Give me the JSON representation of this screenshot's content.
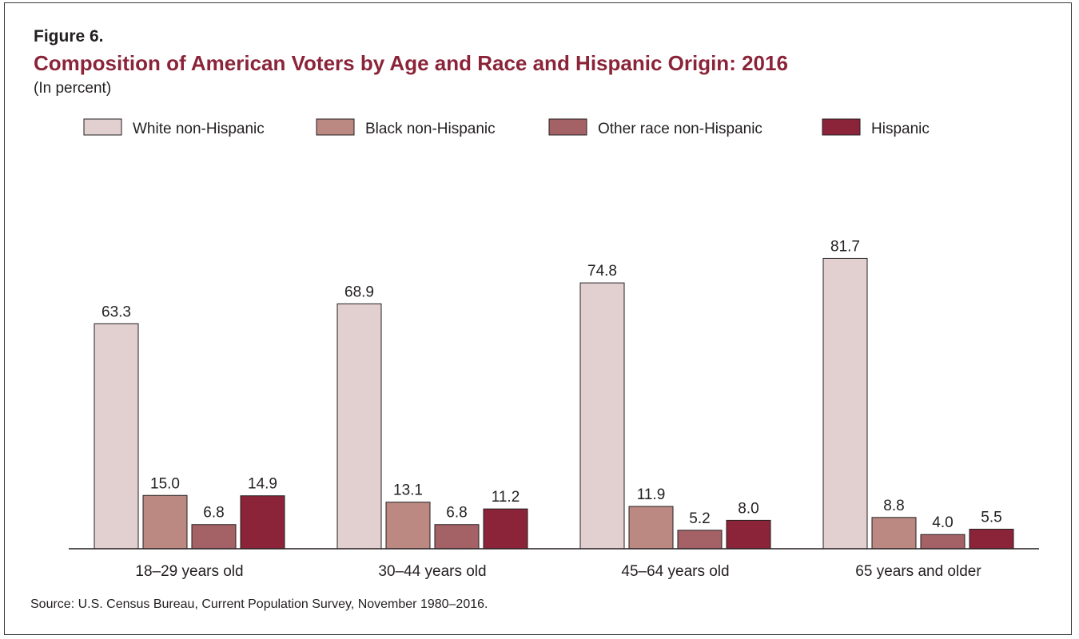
{
  "figure_label": "Figure 6.",
  "title": "Composition of American Voters by Age and Race and Hispanic Origin: 2016",
  "subtitle": "(In percent)",
  "source": "Source: U.S. Census Bureau, Current Population Survey, November 1980–2016.",
  "chart_data": {
    "type": "bar",
    "title": "Composition of American Voters by Age and Race and Hispanic Origin: 2016",
    "ylabel": "",
    "xlabel": "",
    "ylim": [
      0,
      100
    ],
    "grid": false,
    "legend_position": "top",
    "categories": [
      "18–29 years old",
      "30–44 years old",
      "45–64 years old",
      "65 years and older"
    ],
    "series": [
      {
        "name": "White non-Hispanic",
        "color": "#e2cfcf",
        "values": [
          63.3,
          68.9,
          74.8,
          81.7
        ],
        "labels": [
          "63.3",
          "68.9",
          "74.8",
          "81.7"
        ]
      },
      {
        "name": "Black non-Hispanic",
        "color": "#bb8982",
        "values": [
          15.0,
          13.1,
          11.9,
          8.8
        ],
        "labels": [
          "15.0",
          "13.1",
          "11.9",
          "8.8"
        ]
      },
      {
        "name": "Other race non-Hispanic",
        "color": "#a56266",
        "values": [
          6.8,
          6.8,
          5.2,
          4.0
        ],
        "labels": [
          "6.8",
          "6.8",
          "5.2",
          "4.0"
        ]
      },
      {
        "name": "Hispanic",
        "color": "#8b2439",
        "values": [
          14.9,
          11.2,
          8.0,
          5.5
        ],
        "labels": [
          "14.9",
          "11.2",
          "8.0",
          "5.5"
        ]
      }
    ]
  }
}
